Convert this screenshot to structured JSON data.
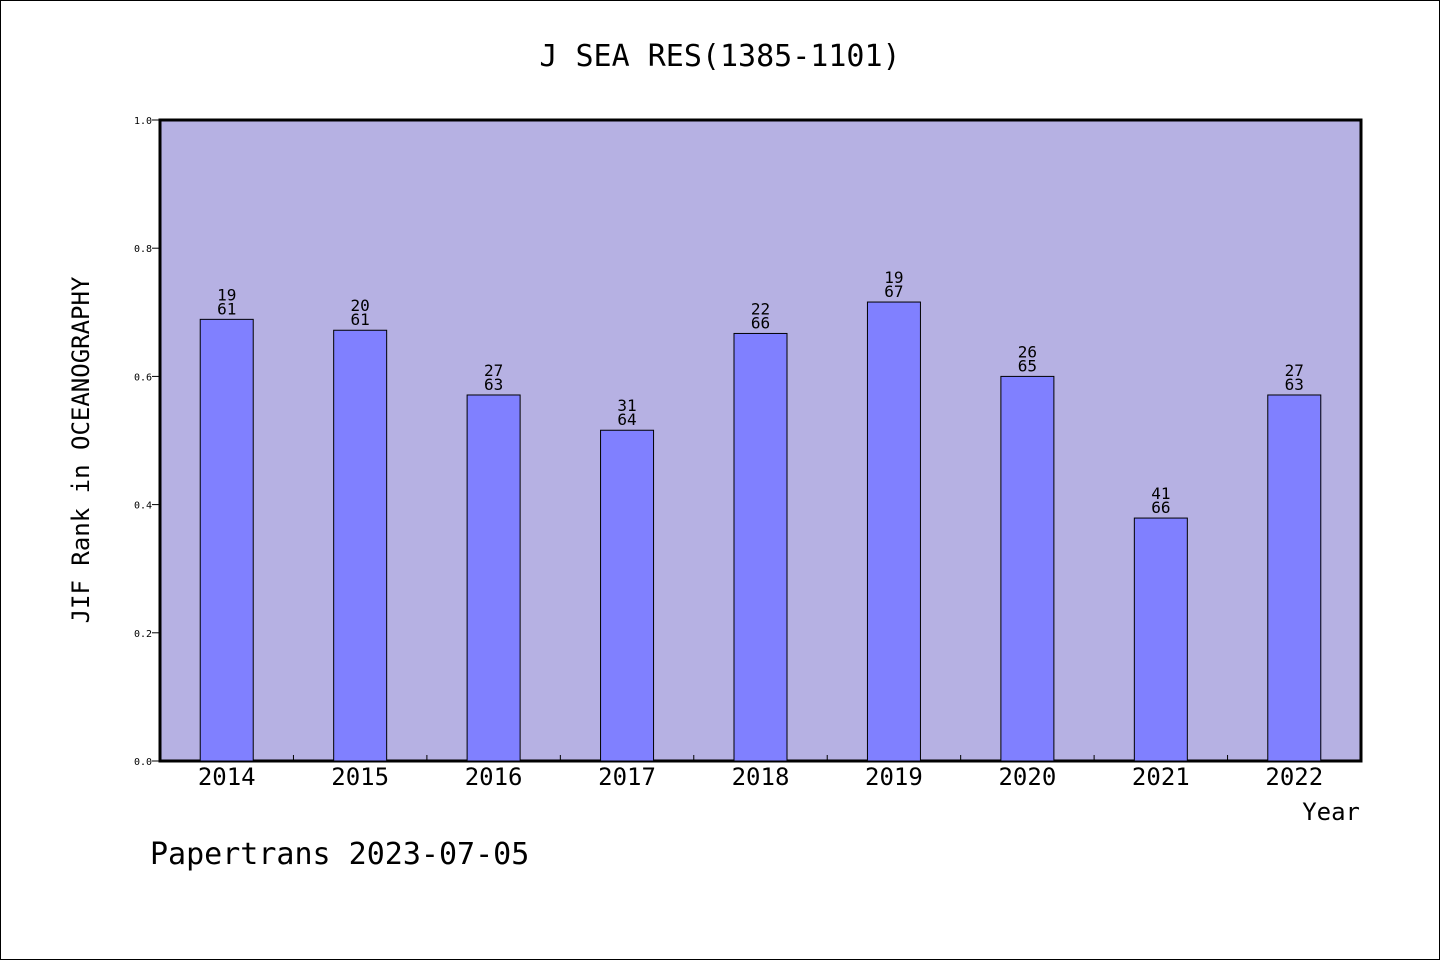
{
  "chart_data": {
    "type": "bar",
    "title": "J SEA RES(1385-1101)",
    "xlabel": "Year",
    "ylabel": "JIF Rank in OCEANOGRAPHY",
    "ylim": [
      0,
      1
    ],
    "yticks": [
      "0.0",
      "0.2",
      "0.4",
      "0.6",
      "0.8",
      "1.0"
    ],
    "categories": [
      "2014",
      "2015",
      "2016",
      "2017",
      "2018",
      "2019",
      "2020",
      "2021",
      "2022"
    ],
    "values": [
      0.689,
      0.672,
      0.571,
      0.516,
      0.667,
      0.716,
      0.6,
      0.379,
      0.571
    ],
    "rank_labels": [
      {
        "rank": "19",
        "total": "61"
      },
      {
        "rank": "20",
        "total": "61"
      },
      {
        "rank": "27",
        "total": "63"
      },
      {
        "rank": "31",
        "total": "64"
      },
      {
        "rank": "22",
        "total": "66"
      },
      {
        "rank": "19",
        "total": "67"
      },
      {
        "rank": "26",
        "total": "65"
      },
      {
        "rank": "41",
        "total": "66"
      },
      {
        "rank": "27",
        "total": "63"
      }
    ],
    "colors": {
      "plot_background": "#b6b1e3",
      "bar_fill": "#8080ff",
      "bar_stroke": "#000000"
    },
    "grid": false,
    "legend": "none"
  },
  "footer": {
    "credit": "Papertrans 2023-07-05"
  }
}
